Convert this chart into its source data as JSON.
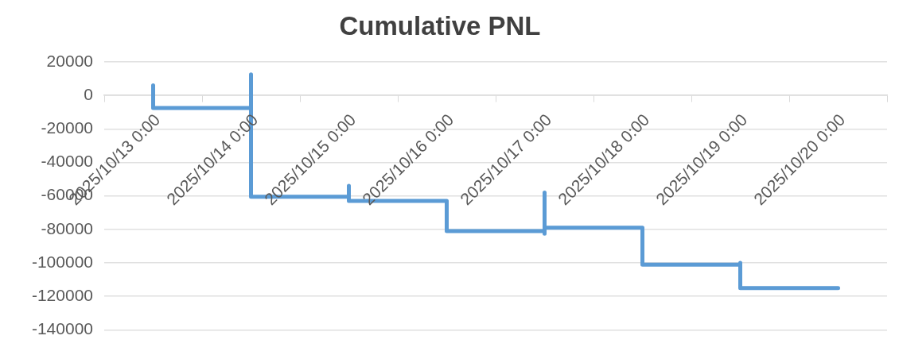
{
  "chart_data": {
    "type": "line",
    "title": "Cumulative PNL",
    "x": [
      "2025-10-13",
      "2025-10-13",
      "2025-10-14",
      "2025-10-14",
      "2025-10-14",
      "2025-10-15",
      "2025-10-15",
      "2025-10-15",
      "2025-10-16",
      "2025-10-16",
      "2025-10-17",
      "2025-10-17",
      "2025-10-17",
      "2025-10-17",
      "2025-10-18",
      "2025-10-18",
      "2025-10-19",
      "2025-10-19",
      "2025-10-19",
      "2025-10-20"
    ],
    "values": [
      6000,
      -7500,
      -7500,
      12500,
      -60500,
      -60500,
      -54000,
      -63000,
      -63000,
      -81000,
      -81000,
      -58000,
      -82500,
      -79000,
      -79000,
      -101000,
      -101000,
      -100000,
      -115000,
      -115000
    ],
    "color": "#5b9bd5",
    "xlim": [
      "2025-10-12T12:00",
      "2025-10-20T12:00"
    ],
    "xticks": [
      {
        "value": "2025-10-12T12:00",
        "label": null
      },
      {
        "value": "2025-10-13",
        "label": "2025/10/13 0:00"
      },
      {
        "value": "2025-10-13T12:00",
        "label": null
      },
      {
        "value": "2025-10-14",
        "label": "2025/10/14 0:00"
      },
      {
        "value": "2025-10-14T12:00",
        "label": null
      },
      {
        "value": "2025-10-15",
        "label": "2025/10/15 0:00"
      },
      {
        "value": "2025-10-15T12:00",
        "label": null
      },
      {
        "value": "2025-10-16",
        "label": "2025/10/16 0:00"
      },
      {
        "value": "2025-10-16T12:00",
        "label": null
      },
      {
        "value": "2025-10-17",
        "label": "2025/10/17 0:00"
      },
      {
        "value": "2025-10-17T12:00",
        "label": null
      },
      {
        "value": "2025-10-18",
        "label": "2025/10/18 0:00"
      },
      {
        "value": "2025-10-18T12:00",
        "label": null
      },
      {
        "value": "2025-10-19",
        "label": "2025/10/19 0:00"
      },
      {
        "value": "2025-10-19T12:00",
        "label": null
      },
      {
        "value": "2025-10-20",
        "label": "2025/10/20 0:00"
      },
      {
        "value": "2025-10-20T12:00",
        "label": null
      }
    ],
    "ylim": [
      -140000,
      20000
    ],
    "yticks": [
      -140000,
      -120000,
      -100000,
      -80000,
      -60000,
      -40000,
      -20000,
      0,
      20000
    ],
    "grid": "y"
  }
}
